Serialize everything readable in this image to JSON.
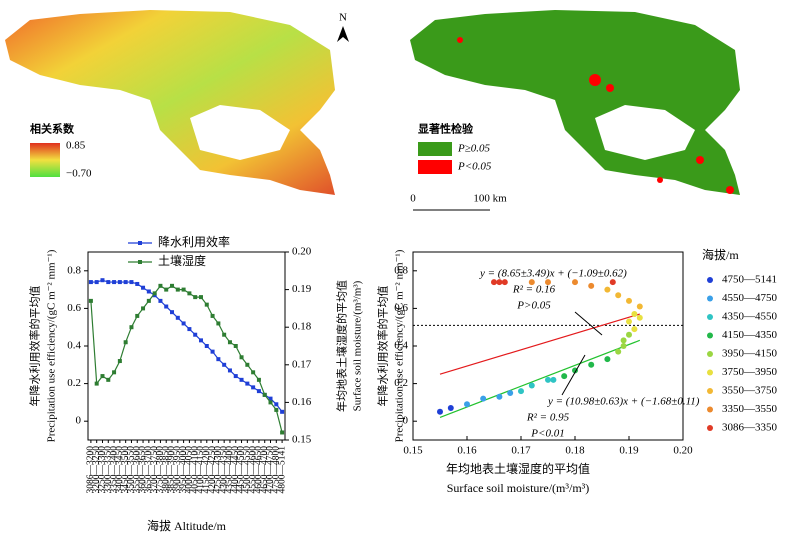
{
  "maps": {
    "north": "N",
    "left_legend": {
      "title": "相关系数",
      "max": "0.85",
      "min": "−0.70"
    },
    "right_legend": {
      "title": "显著性检验",
      "items": [
        {
          "label": "P≥0.05",
          "color": "#3a9a1a"
        },
        {
          "label": "P<0.05",
          "color": "#ff0000"
        }
      ]
    },
    "scale_bar": {
      "start": "0",
      "end": "100 km"
    }
  },
  "chart_data": [
    {
      "type": "line",
      "x_label": "海拔 Altitude/m",
      "y_label": [
        "年降水利用效率的平均值",
        "Precipitation use efficiency/(gC m⁻² mm⁻¹)"
      ],
      "y2_label": [
        "年均地表土壤湿度的平均值",
        "Surface soil moisture/(m³/m³)"
      ],
      "categories": [
        "3086—3200",
        "3200—3250",
        "3250—3300",
        "3300—3350",
        "3350—3400",
        "3400—3450",
        "3450—3500",
        "3500—3550",
        "3550—3600",
        "3600—3650",
        "3650—3700",
        "3700—3750",
        "3750—3800",
        "3800—3850",
        "3850—3900",
        "3900—3950",
        "3950—4000",
        "4000—4050",
        "4050—4100",
        "4100—4150",
        "4150—4200",
        "4200—4250",
        "4250—4300",
        "4300—4350",
        "4350—4400",
        "4400—4450",
        "4450—4500",
        "4500—4550",
        "4550—4600",
        "4600—4650",
        "4650—4700",
        "4700—4750",
        "4750—4800",
        "4800—5141"
      ],
      "series": [
        {
          "name": "降水利用效率",
          "color": "#1f3fd6",
          "values": [
            0.74,
            0.74,
            0.75,
            0.74,
            0.74,
            0.74,
            0.74,
            0.74,
            0.73,
            0.71,
            0.69,
            0.67,
            0.64,
            0.61,
            0.58,
            0.55,
            0.52,
            0.49,
            0.46,
            0.43,
            0.4,
            0.37,
            0.33,
            0.3,
            0.27,
            0.24,
            0.22,
            0.2,
            0.18,
            0.16,
            0.14,
            0.12,
            0.09,
            0.05
          ]
        },
        {
          "name": "土壤湿度",
          "color": "#2e7d32",
          "axis": "y2",
          "values": [
            0.187,
            0.165,
            0.167,
            0.166,
            0.168,
            0.171,
            0.176,
            0.18,
            0.183,
            0.185,
            0.187,
            0.189,
            0.191,
            0.19,
            0.191,
            0.19,
            0.19,
            0.189,
            0.188,
            0.188,
            0.186,
            0.183,
            0.181,
            0.178,
            0.176,
            0.175,
            0.172,
            0.17,
            0.168,
            0.166,
            0.162,
            0.16,
            0.158,
            0.152
          ]
        }
      ],
      "ylim": [
        -0.1,
        0.9
      ],
      "yticks": [
        0,
        0.2,
        0.4,
        0.6,
        0.8
      ],
      "y2lim": [
        0.15,
        0.2
      ],
      "y2ticks": [
        0.15,
        0.16,
        0.17,
        0.18,
        0.19,
        {
          "value": 0.2,
          "label": "0.20"
        }
      ]
    },
    {
      "type": "scatter",
      "x_label": [
        "年均地表土壤湿度的平均值",
        "Surface soil moisture/(m³/m³)"
      ],
      "y_label": [
        "年降水利用效率的平均值",
        "Precipitation use efficiency/(gC m⁻² mm⁻¹)"
      ],
      "legend_title": "海拔/m",
      "series": [
        {
          "name": "4750—5141",
          "color": "#1f3fd6",
          "x": [
            0.155,
            0.157
          ],
          "values": [
            0.05,
            0.07
          ]
        },
        {
          "name": "4550—4750",
          "color": "#3aa0e8",
          "x": [
            0.16,
            0.163,
            0.166,
            0.168
          ],
          "values": [
            0.09,
            0.12,
            0.13,
            0.15
          ]
        },
        {
          "name": "4350—4550",
          "color": "#2fc4c4",
          "x": [
            0.17,
            0.172,
            0.175,
            0.176
          ],
          "values": [
            0.16,
            0.19,
            0.22,
            0.22
          ]
        },
        {
          "name": "4150—4350",
          "color": "#22b84a",
          "x": [
            0.178,
            0.18,
            0.183,
            0.186
          ],
          "values": [
            0.24,
            0.27,
            0.3,
            0.33
          ]
        },
        {
          "name": "3950—4150",
          "color": "#9bd642",
          "x": [
            0.188,
            0.189,
            0.189,
            0.19
          ],
          "values": [
            0.37,
            0.4,
            0.43,
            0.46
          ]
        },
        {
          "name": "3750—3950",
          "color": "#e8e040",
          "x": [
            0.191,
            0.19,
            0.192,
            0.191
          ],
          "values": [
            0.49,
            0.53,
            0.55,
            0.57
          ]
        },
        {
          "name": "3550—3750",
          "color": "#f2b834",
          "x": [
            0.192,
            0.19,
            0.188,
            0.186
          ],
          "values": [
            0.61,
            0.64,
            0.67,
            0.7
          ]
        },
        {
          "name": "3350—3550",
          "color": "#ec8a2e",
          "x": [
            0.183,
            0.18,
            0.175,
            0.172
          ],
          "values": [
            0.72,
            0.74,
            0.74,
            0.74
          ]
        },
        {
          "name": "3086—3350",
          "color": "#e03a26",
          "x": [
            0.167,
            0.166,
            0.165,
            0.187
          ],
          "values": [
            0.74,
            0.74,
            0.74,
            0.74
          ]
        }
      ],
      "fit_lines": [
        {
          "color": "#e31a1c",
          "x": [
            0.155,
            0.192
          ],
          "values": [
            0.25,
            0.57
          ]
        },
        {
          "color": "#22c22e",
          "x": [
            0.155,
            0.192
          ],
          "values": [
            0.02,
            0.43
          ]
        }
      ],
      "hline": 0.51,
      "annotations": [
        "y = (8.65±3.49)x + (−1.09±0.62)",
        "R² = 0.16",
        "P>0.05",
        "y = (10.98±0.63)x + (−1.68±0.11)",
        "R² = 0.95",
        "P<0.01"
      ],
      "xlim": [
        0.15,
        0.2
      ],
      "xticks": [
        0.15,
        0.16,
        0.17,
        0.18,
        0.19,
        {
          "value": 0.2,
          "label": "0.20"
        }
      ],
      "ylim": [
        -0.1,
        0.9
      ],
      "yticks": [
        0,
        0.2,
        0.4,
        0.6,
        0.8
      ]
    }
  ]
}
